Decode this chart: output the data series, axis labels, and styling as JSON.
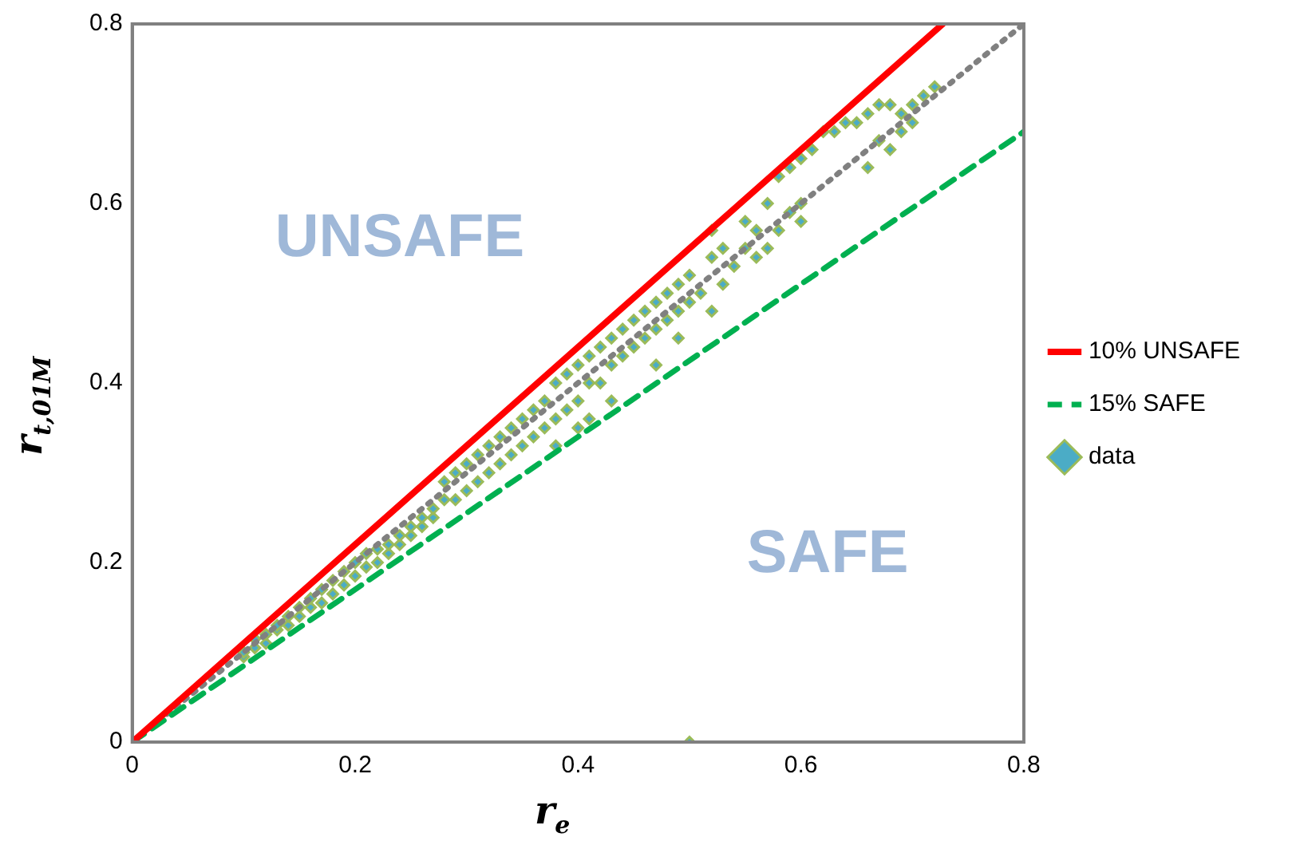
{
  "chart_data": {
    "type": "scatter",
    "xlabel": "r$_{e}$",
    "ylabel": "r$_{t,01M}$",
    "xlim": [
      0,
      0.8
    ],
    "ylim": [
      0,
      0.8
    ],
    "xticks": [
      0,
      0.2,
      0.4,
      0.6,
      0.8
    ],
    "yticks": [
      0,
      0.2,
      0.4,
      0.6,
      0.8
    ],
    "grid": false,
    "legend": "right",
    "annotations": [
      "UNSAFE",
      "SAFE"
    ],
    "series": [
      {
        "name": "10% UNSAFE",
        "type": "line",
        "color": "#ff0000",
        "line_style": "solid",
        "marker": "none",
        "x": [
          0,
          0.7273
        ],
        "values": [
          0,
          0.8
        ]
      },
      {
        "name": "15% SAFE",
        "type": "line",
        "color": "#00b050",
        "line_style": "dashed",
        "marker": "none",
        "x": [
          0,
          0.8
        ],
        "values": [
          0,
          0.68
        ]
      },
      {
        "type": "line",
        "color": "#808080",
        "line_style": "dotted",
        "marker": "none",
        "x": [
          0,
          0.8
        ],
        "values": [
          0,
          0.8
        ]
      },
      {
        "name": "data",
        "color": "#9bbb59",
        "marker": "diamond",
        "x": [
          0.1,
          0.1,
          0.11,
          0.11,
          0.12,
          0.12,
          0.13,
          0.13,
          0.14,
          0.14,
          0.15,
          0.15,
          0.16,
          0.16,
          0.17,
          0.17,
          0.18,
          0.18,
          0.19,
          0.19,
          0.2,
          0.2,
          0.21,
          0.21,
          0.22,
          0.22,
          0.23,
          0.23,
          0.24,
          0.24,
          0.25,
          0.25,
          0.26,
          0.26,
          0.27,
          0.27,
          0.28,
          0.28,
          0.29,
          0.29,
          0.3,
          0.3,
          0.31,
          0.31,
          0.32,
          0.32,
          0.33,
          0.33,
          0.34,
          0.34,
          0.35,
          0.35,
          0.36,
          0.36,
          0.37,
          0.37,
          0.38,
          0.38,
          0.39,
          0.39,
          0.4,
          0.4,
          0.41,
          0.41,
          0.42,
          0.42,
          0.43,
          0.43,
          0.44,
          0.44,
          0.45,
          0.45,
          0.46,
          0.46,
          0.47,
          0.47,
          0.48,
          0.48,
          0.49,
          0.49,
          0.5,
          0.5,
          0.51,
          0.52,
          0.53,
          0.53,
          0.54,
          0.55,
          0.56,
          0.56,
          0.57,
          0.58,
          0.59,
          0.6,
          0.6,
          0.38,
          0.4,
          0.41,
          0.43,
          0.47,
          0.49,
          0.52,
          0.52,
          0.55,
          0.57,
          0.58,
          0.59,
          0.6,
          0.61,
          0.62,
          0.63,
          0.64,
          0.65,
          0.66,
          0.67,
          0.68,
          0.69,
          0.7,
          0.71,
          0.72,
          0.69,
          0.7,
          0.67,
          0.66,
          0.68,
          0.5
        ],
        "values": [
          0.095,
          0.1,
          0.105,
          0.115,
          0.11,
          0.12,
          0.125,
          0.13,
          0.13,
          0.14,
          0.14,
          0.15,
          0.15,
          0.16,
          0.155,
          0.17,
          0.165,
          0.18,
          0.175,
          0.19,
          0.185,
          0.2,
          0.195,
          0.21,
          0.2,
          0.215,
          0.21,
          0.22,
          0.22,
          0.23,
          0.23,
          0.24,
          0.24,
          0.25,
          0.25,
          0.26,
          0.27,
          0.29,
          0.27,
          0.3,
          0.28,
          0.31,
          0.29,
          0.32,
          0.3,
          0.33,
          0.31,
          0.34,
          0.32,
          0.35,
          0.33,
          0.36,
          0.34,
          0.37,
          0.35,
          0.38,
          0.36,
          0.4,
          0.37,
          0.41,
          0.38,
          0.42,
          0.4,
          0.43,
          0.4,
          0.44,
          0.42,
          0.45,
          0.43,
          0.46,
          0.44,
          0.47,
          0.45,
          0.48,
          0.46,
          0.49,
          0.47,
          0.5,
          0.48,
          0.51,
          0.49,
          0.52,
          0.5,
          0.54,
          0.51,
          0.55,
          0.53,
          0.55,
          0.54,
          0.57,
          0.55,
          0.57,
          0.59,
          0.58,
          0.6,
          0.33,
          0.35,
          0.36,
          0.38,
          0.42,
          0.45,
          0.48,
          0.57,
          0.58,
          0.6,
          0.63,
          0.64,
          0.65,
          0.66,
          0.68,
          0.68,
          0.69,
          0.69,
          0.7,
          0.71,
          0.71,
          0.7,
          0.71,
          0.72,
          0.73,
          0.68,
          0.69,
          0.67,
          0.64,
          0.66,
          0.0
        ]
      }
    ]
  }
}
